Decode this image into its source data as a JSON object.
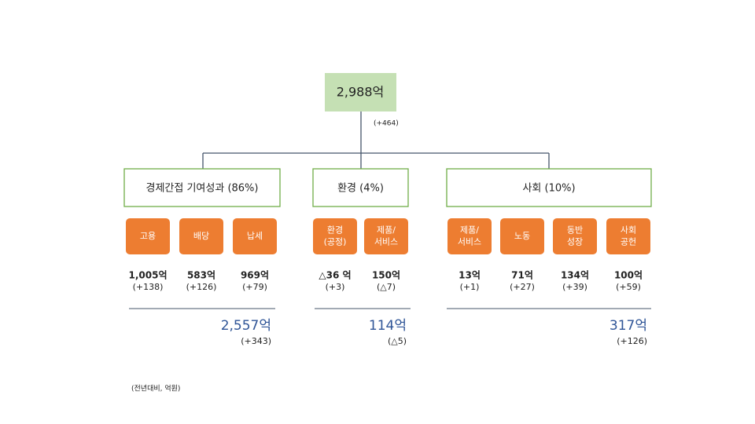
{
  "root": {
    "value": "2,988억",
    "change": "(+464)"
  },
  "groups": [
    {
      "label": "경제간접 기여성과 (86%)",
      "items": [
        {
          "label": [
            "고용"
          ],
          "value": "1,005억",
          "change": "(+138)"
        },
        {
          "label": [
            "배당"
          ],
          "value": "583억",
          "change": "(+126)"
        },
        {
          "label": [
            "납세"
          ],
          "value": "969억",
          "change": "(+79)"
        }
      ],
      "total": "2,557억",
      "total_change": "(+343)"
    },
    {
      "label": "환경 (4%)",
      "items": [
        {
          "label": [
            "환경",
            "(공정)"
          ],
          "value": "△36 억",
          "change": "(+3)"
        },
        {
          "label": [
            "제품/",
            "서비스"
          ],
          "value": "150억",
          "change": "(△7)"
        }
      ],
      "total": "114억",
      "total_change": "(△5)"
    },
    {
      "label": "사회 (10%)",
      "items": [
        {
          "label": [
            "제품/",
            "서비스"
          ],
          "value": "13억",
          "change": "(+1)"
        },
        {
          "label": [
            "노동"
          ],
          "value": "71억",
          "change": "(+27)"
        },
        {
          "label": [
            "동반",
            "성장"
          ],
          "value": "134억",
          "change": "(+39)"
        },
        {
          "label": [
            "사회",
            "공헌"
          ],
          "value": "100억",
          "change": "(+59)"
        }
      ],
      "total": "317억",
      "total_change": "(+126)"
    }
  ],
  "footnote": "(전년대비, 억원)"
}
